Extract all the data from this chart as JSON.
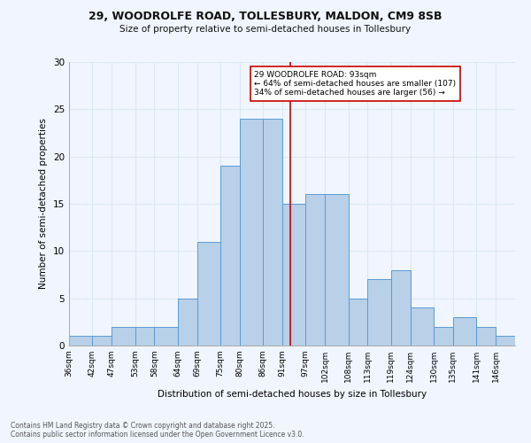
{
  "title1": "29, WOODROLFE ROAD, TOLLESBURY, MALDON, CM9 8SB",
  "title2": "Size of property relative to semi-detached houses in Tollesbury",
  "xlabel": "Distribution of semi-detached houses by size in Tollesbury",
  "ylabel": "Number of semi-detached properties",
  "bins": [
    36,
    42,
    47,
    53,
    58,
    64,
    69,
    75,
    80,
    86,
    91,
    97,
    102,
    108,
    113,
    119,
    124,
    130,
    135,
    141,
    146
  ],
  "bin_labels": [
    "36sqm",
    "42sqm",
    "47sqm",
    "53sqm",
    "58sqm",
    "64sqm",
    "69sqm",
    "75sqm",
    "80sqm",
    "86sqm",
    "91sqm",
    "97sqm",
    "102sqm",
    "108sqm",
    "113sqm",
    "119sqm",
    "124sqm",
    "130sqm",
    "135sqm",
    "141sqm",
    "146sqm"
  ],
  "counts": [
    1,
    1,
    2,
    2,
    2,
    5,
    11,
    19,
    24,
    24,
    15,
    16,
    16,
    5,
    7,
    8,
    4,
    2,
    3,
    2,
    1
  ],
  "bar_color": "#b8d0e8",
  "bar_edge_color": "#5b9bd5",
  "grid_color": "#dce8f5",
  "background_color": "#f0f5ff",
  "red_line_x": 93,
  "annotation_text": "29 WOODROLFE ROAD: 93sqm\n← 64% of semi-detached houses are smaller (107)\n34% of semi-detached houses are larger (56) →",
  "annotation_box_color": "#ffffff",
  "annotation_border_color": "#cc0000",
  "footer1": "Contains HM Land Registry data © Crown copyright and database right 2025.",
  "footer2": "Contains public sector information licensed under the Open Government Licence v3.0.",
  "ylim": [
    0,
    30
  ],
  "yticks": [
    0,
    5,
    10,
    15,
    20,
    25,
    30
  ]
}
